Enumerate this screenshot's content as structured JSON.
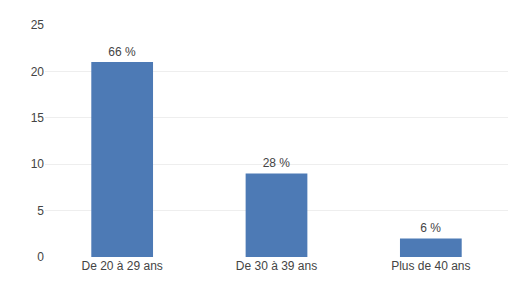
{
  "chart_data": {
    "type": "bar",
    "categories": [
      "De 20 à 29 ans",
      "De 30 à 39 ans",
      "Plus de 40 ans"
    ],
    "values": [
      21,
      9,
      2
    ],
    "value_labels": [
      "66 %",
      "28 %",
      "6 %"
    ],
    "data_labels": true,
    "color": "#4d7ab5",
    "ylim": [
      0,
      25
    ],
    "yticks": [
      0,
      5,
      10,
      15,
      20,
      25
    ],
    "grid": true
  }
}
